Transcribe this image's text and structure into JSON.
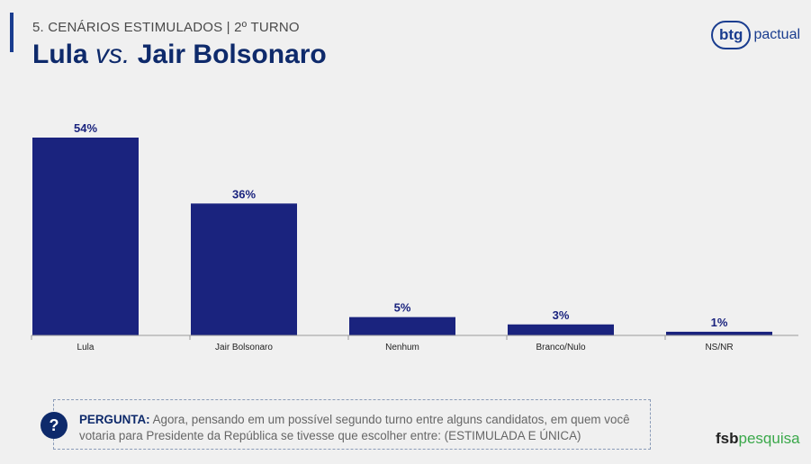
{
  "header": {
    "subtitle": "5. CENÁRIOS ESTIMULADOS | 2º TURNO",
    "title_part1": "Lula",
    "title_vs": "vs.",
    "title_part2": "Jair Bolsonaro"
  },
  "logos": {
    "btg_mark": "btg",
    "btg_text": "pactual",
    "fsb": "fsb",
    "pesquisa": "pesquisa"
  },
  "chart_data": {
    "type": "bar",
    "categories": [
      "Lula",
      "Jair Bolsonaro",
      "Nenhum",
      "Branco/Nulo",
      "NS/NR"
    ],
    "values": [
      54,
      36,
      5,
      3,
      1
    ],
    "data_labels": [
      "54%",
      "36%",
      "5%",
      "3%",
      "1%"
    ],
    "ylim": [
      0,
      60
    ],
    "grid": false,
    "legend": "none",
    "bar_color": "#1a237e"
  },
  "question": {
    "label": "PERGUNTA:",
    "text": "Agora, pensando em um possível segundo turno entre alguns candidatos, em quem você votaria para Presidente da República se tivesse que escolher entre: (ESTIMULADA E ÚNICA)",
    "icon": "?"
  }
}
